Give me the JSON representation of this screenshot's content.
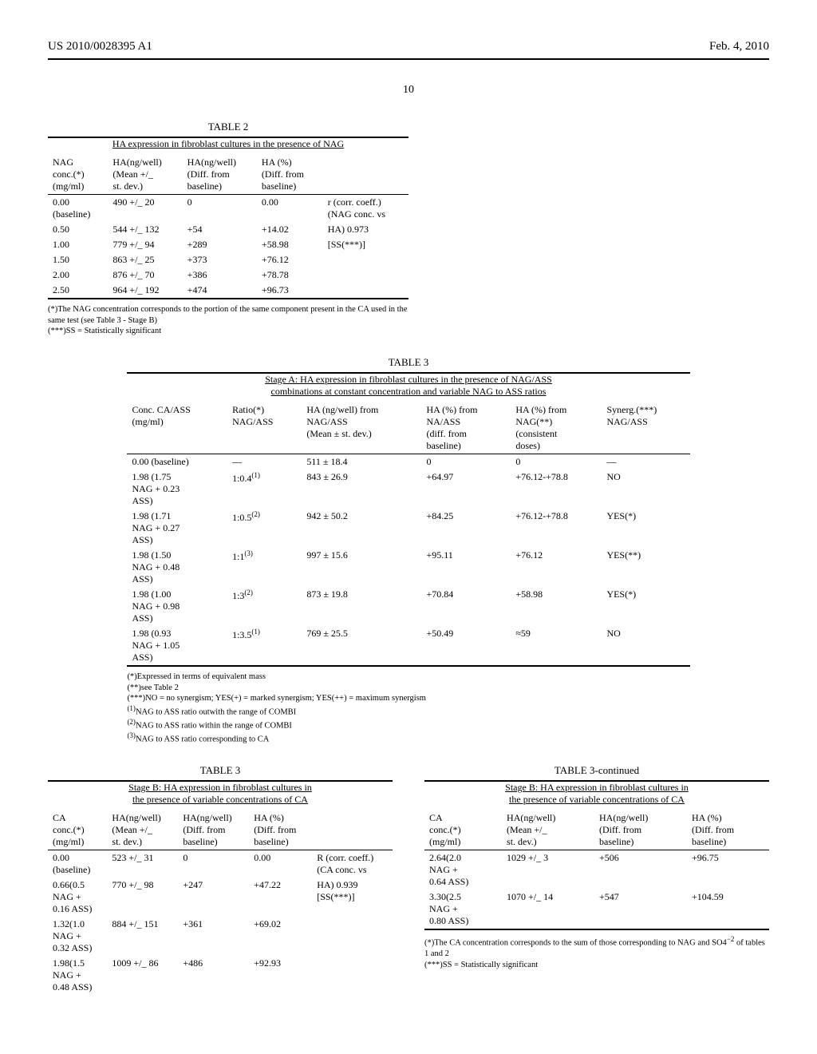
{
  "header": {
    "pub_number": "US 2010/0028395 A1",
    "pub_date": "Feb. 4, 2010",
    "page_number": "10"
  },
  "table2": {
    "label": "TABLE 2",
    "title": "HA expression in fibroblast cultures in the presence of NAG",
    "col_headers": [
      "NAG\nconc.(*)\n(mg/ml)",
      "HA(ng/well)\n(Mean +/_\nst. dev.)",
      "HA(ng/well)\n(Diff. from\nbaseline)",
      "HA (%)\n(Diff. from\nbaseline)",
      ""
    ],
    "rows": [
      [
        "0.00\n(baseline)",
        "490 +/_ 20",
        "0",
        "0.00",
        "r (corr. coeff.)\n(NAG conc. vs"
      ],
      [
        "0.50",
        "544 +/_ 132",
        "+54",
        "+14.02",
        "HA) 0.973"
      ],
      [
        "1.00",
        "779 +/_ 94",
        "+289",
        "+58.98",
        "[SS(***)]"
      ],
      [
        "1.50",
        "863 +/_ 25",
        "+373",
        "+76.12",
        ""
      ],
      [
        "2.00",
        "876 +/_ 70",
        "+386",
        "+78.78",
        ""
      ],
      [
        "2.50",
        "964 +/_ 192",
        "+474",
        "+96.73",
        ""
      ]
    ],
    "footnotes": [
      "(*)The NAG concentration corresponds to the portion of the same component present in the CA used in the same test (see Table 3 - Stage B)",
      "(***)SS = Statistically significant"
    ]
  },
  "table3a": {
    "label": "TABLE 3",
    "title": "Stage A: HA expression in fibroblast cultures in the presence of NAG/ASS\ncombinations at constant concentration and variable NAG to ASS ratios",
    "col_headers": [
      "Conc. CA/ASS\n(mg/ml)",
      "Ratio(*)\nNAG/ASS",
      "HA (ng/well) from\nNAG/ASS\n(Mean ± st. dev.)",
      "HA (%) from\nNA/ASS\n(diff. from\nbaseline)",
      "HA (%) from\nNAG(**)\n(consistent\ndoses)",
      "Synerg.(***)\nNAG/ASS"
    ],
    "rows": [
      [
        "0.00 (baseline)",
        "—",
        "511 ± 18.4",
        "0",
        "0",
        "—"
      ],
      [
        "1.98 (1.75\nNAG + 0.23\nASS)",
        "1:0.4(1)",
        "843 ± 26.9",
        "+64.97",
        "+76.12-+78.8",
        "NO"
      ],
      [
        "1.98 (1.71\nNAG + 0.27\nASS)",
        "1:0.5(2)",
        "942 ± 50.2",
        "+84.25",
        "+76.12-+78.8",
        "YES(*)"
      ],
      [
        "1.98 (1.50\nNAG + 0.48\nASS)",
        "1:1(3)",
        "997 ± 15.6",
        "+95.11",
        "+76.12",
        "YES(**)"
      ],
      [
        "1.98 (1.00\nNAG + 0.98\nASS)",
        "1:3(2)",
        "873 ± 19.8",
        "+70.84",
        "+58.98",
        "YES(*)"
      ],
      [
        "1.98 (0.93\nNAG + 1.05\nASS)",
        "1:3.5(1)",
        "769 ± 25.5",
        "+50.49",
        "≈59",
        "NO"
      ]
    ],
    "footnotes": [
      "(*)Expressed in terms of equivalent mass",
      "(**)see Table 2",
      "(***)NO = no synergism; YES(+) = marked synergism; YES(++) = maximum synergism",
      "(1)NAG to ASS ratio outwith the range of COMBI",
      "(2)NAG to ASS ratio within the range of COMBI",
      "(3)NAG to ASS ratio corresponding to CA"
    ]
  },
  "table3b_left": {
    "label": "TABLE 3",
    "title": "Stage B: HA expression in fibroblast cultures in\nthe presence of variable concentrations of CA",
    "col_headers": [
      "CA\nconc.(*)\n(mg/ml)",
      "HA(ng/well)\n(Mean +/_\nst. dev.)",
      "HA(ng/well)\n(Diff. from\nbaseline)",
      "HA (%)\n(Diff. from\nbaseline)",
      ""
    ],
    "rows": [
      [
        "0.00\n(baseline)",
        "523 +/_ 31",
        "0",
        "0.00",
        "R (corr. coeff.)\n(CA conc. vs"
      ],
      [
        "0.66(0.5\nNAG +\n0.16 ASS)",
        "770 +/_ 98",
        "+247",
        "+47.22",
        "HA) 0.939\n[SS(***)]"
      ],
      [
        "1.32(1.0\nNAG +\n0.32 ASS)",
        "884 +/_ 151",
        "+361",
        "+69.02",
        ""
      ],
      [
        "1.98(1.5\nNAG +\n0.48 ASS)",
        "1009 +/_ 86",
        "+486",
        "+92.93",
        ""
      ]
    ]
  },
  "table3b_right": {
    "label": "TABLE 3-continued",
    "title": "Stage B: HA expression in fibroblast cultures in\nthe presence of variable concentrations of CA",
    "col_headers": [
      "CA\nconc.(*)\n(mg/ml)",
      "HA(ng/well)\n(Mean +/_\nst. dev.)",
      "HA(ng/well)\n(Diff. from\nbaseline)",
      "HA (%)\n(Diff. from\nbaseline)"
    ],
    "rows": [
      [
        "2.64(2.0\nNAG +\n0.64 ASS)",
        "1029 +/_ 3",
        "+506",
        "+96.75"
      ],
      [
        "3.30(2.5\nNAG +\n0.80 ASS)",
        "1070 +/_ 14",
        "+547",
        "+104.59"
      ]
    ],
    "footnotes": [
      "(*)The CA concentration corresponds to the sum of those corresponding to NAG and SO4−2 of tables 1 and 2",
      "(***)SS = Statistically significant"
    ]
  }
}
